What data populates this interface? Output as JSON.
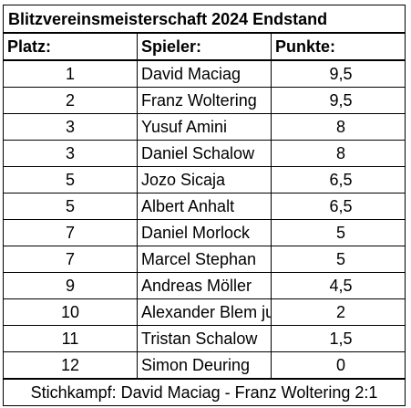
{
  "title": "Blitzvereinsmeisterschaft 2024 Endstand",
  "headers": {
    "place": "Platz:",
    "player": "Spieler:",
    "points": "Punkte:"
  },
  "rows": [
    {
      "place": "1",
      "player": "David Maciag",
      "points": "9,5"
    },
    {
      "place": "2",
      "player": "Franz Woltering",
      "points": "9,5"
    },
    {
      "place": "3",
      "player": "Yusuf Amini",
      "points": "8"
    },
    {
      "place": "3",
      "player": "Daniel Schalow",
      "points": "8"
    },
    {
      "place": "5",
      "player": "Jozo Sicaja",
      "points": "6,5"
    },
    {
      "place": "5",
      "player": "Albert Anhalt",
      "points": "6,5"
    },
    {
      "place": "7",
      "player": "Daniel Morlock",
      "points": "5"
    },
    {
      "place": "7",
      "player": "Marcel Stephan",
      "points": "5"
    },
    {
      "place": "9",
      "player": "Andreas Möller",
      "points": "4,5"
    },
    {
      "place": "10",
      "player": "Alexander Blem jun.",
      "points": "2"
    },
    {
      "place": "11",
      "player": "Tristan Schalow",
      "points": "1,5"
    },
    {
      "place": "12",
      "player": "Simon Deuring",
      "points": "0"
    }
  ],
  "footer": "Stichkampf: David Maciag - Franz Woltering 2:1"
}
